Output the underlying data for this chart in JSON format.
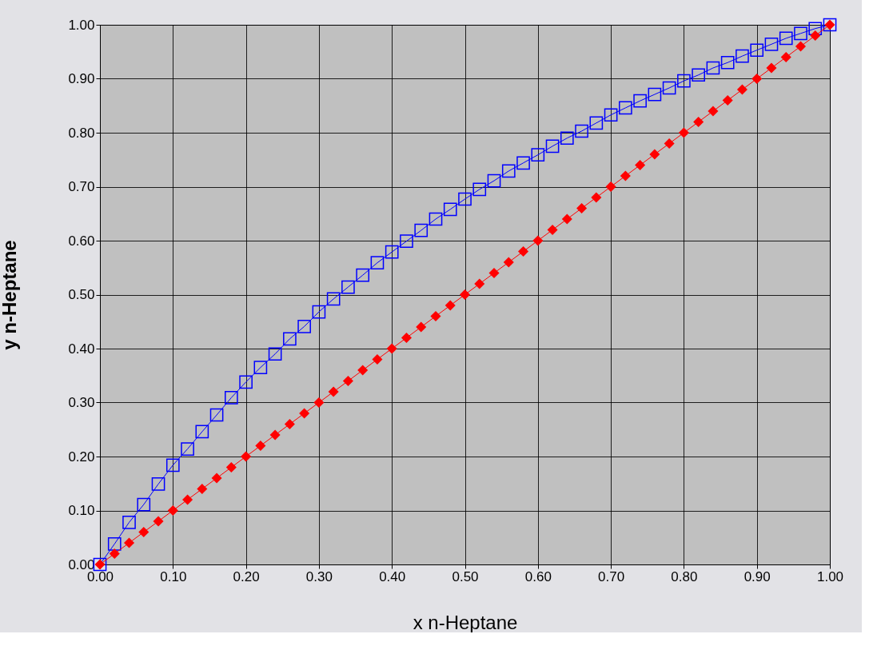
{
  "chart_data": {
    "type": "line",
    "xlabel": "x n-Heptane",
    "ylabel": "y n-Heptane",
    "x": [
      0,
      0.02,
      0.04,
      0.06,
      0.08,
      0.1,
      0.12,
      0.14,
      0.16,
      0.18,
      0.2,
      0.22,
      0.24,
      0.26,
      0.28,
      0.3,
      0.32,
      0.34,
      0.36,
      0.38,
      0.4,
      0.42,
      0.44,
      0.46,
      0.48,
      0.5,
      0.52,
      0.54,
      0.56,
      0.58,
      0.6,
      0.62,
      0.64,
      0.66,
      0.68,
      0.7,
      0.72,
      0.74,
      0.76,
      0.78,
      0.8,
      0.82,
      0.84,
      0.86,
      0.88,
      0.9,
      0.92,
      0.94,
      0.96,
      0.98,
      1.0
    ],
    "series": [
      {
        "color": "#0000ff",
        "marker": "square",
        "values": [
          0,
          0.038,
          0.078,
          0.111,
          0.149,
          0.184,
          0.214,
          0.246,
          0.277,
          0.309,
          0.338,
          0.365,
          0.39,
          0.418,
          0.441,
          0.468,
          0.492,
          0.514,
          0.536,
          0.559,
          0.579,
          0.599,
          0.619,
          0.64,
          0.658,
          0.677,
          0.695,
          0.711,
          0.729,
          0.744,
          0.759,
          0.775,
          0.79,
          0.803,
          0.818,
          0.833,
          0.846,
          0.859,
          0.871,
          0.883,
          0.896,
          0.907,
          0.92,
          0.93,
          0.942,
          0.953,
          0.964,
          0.975,
          0.984,
          0.993,
          1.0
        ]
      },
      {
        "color": "#ff0000",
        "marker": "diamond",
        "values": [
          0,
          0.02,
          0.04,
          0.06,
          0.08,
          0.1,
          0.12,
          0.14,
          0.16,
          0.18,
          0.2,
          0.22,
          0.24,
          0.26,
          0.28,
          0.3,
          0.32,
          0.34,
          0.36,
          0.38,
          0.4,
          0.42,
          0.44,
          0.46,
          0.48,
          0.5,
          0.52,
          0.54,
          0.56,
          0.58,
          0.6,
          0.62,
          0.64,
          0.66,
          0.68,
          0.7,
          0.72,
          0.74,
          0.76,
          0.78,
          0.8,
          0.82,
          0.84,
          0.86,
          0.88,
          0.9,
          0.92,
          0.94,
          0.96,
          0.98,
          1.0
        ]
      }
    ],
    "xlim": [
      0,
      1
    ],
    "ylim": [
      0,
      1
    ],
    "xticks": [
      {
        "value": 0,
        "label": "0.00"
      },
      {
        "value": 0.1,
        "label": "0.10"
      },
      {
        "value": 0.2,
        "label": "0.20"
      },
      {
        "value": 0.3,
        "label": "0.30"
      },
      {
        "value": 0.4,
        "label": "0.40"
      },
      {
        "value": 0.5,
        "label": "0.50"
      },
      {
        "value": 0.6,
        "label": "0.60"
      },
      {
        "value": 0.7,
        "label": "0.70"
      },
      {
        "value": 0.8,
        "label": "0.80"
      },
      {
        "value": 0.9,
        "label": "0.90"
      },
      {
        "value": 1,
        "label": "1.00"
      }
    ],
    "yticks": [
      {
        "value": 0,
        "label": "0.00"
      },
      {
        "value": 0.1,
        "label": "0.10"
      },
      {
        "value": 0.2,
        "label": "0.20"
      },
      {
        "value": 0.3,
        "label": "0.30"
      },
      {
        "value": 0.4,
        "label": "0.40"
      },
      {
        "value": 0.5,
        "label": "0.50"
      },
      {
        "value": 0.6,
        "label": "0.60"
      },
      {
        "value": 0.7,
        "label": "0.70"
      },
      {
        "value": 0.8,
        "label": "0.80"
      },
      {
        "value": 0.9,
        "label": "0.90"
      },
      {
        "value": 1,
        "label": "1.00"
      }
    ],
    "grid": true
  }
}
